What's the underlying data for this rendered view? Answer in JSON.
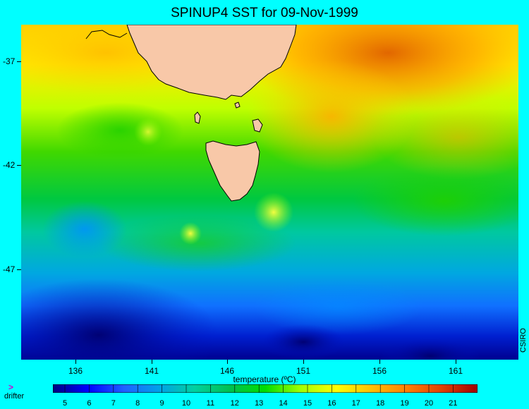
{
  "title": "SPINUP4 SST for 09-Nov-1999",
  "y_axis": {
    "ticks": [
      "-37",
      "-42",
      "-47"
    ]
  },
  "x_axis": {
    "ticks": [
      "136",
      "141",
      "146",
      "151",
      "156",
      "161"
    ]
  },
  "colorbar": {
    "title": "temperature (ºC)",
    "labels": [
      "5",
      "6",
      "7",
      "8",
      "9",
      "10",
      "11",
      "12",
      "13",
      "14",
      "15",
      "16",
      "17",
      "18",
      "19",
      "20",
      "21"
    ],
    "stops": [
      "#000080",
      "#0000ff",
      "#2060ff",
      "#00a0e8",
      "#00d0a0",
      "#00c050",
      "#00dd00",
      "#a0ff00",
      "#ffff00",
      "#ffc000",
      "#ff8000",
      "#e04000",
      "#a00000"
    ]
  },
  "legend": {
    "drifter_symbol": ">",
    "drifter_label": "drifter"
  },
  "credit": "CSIRO",
  "colors": {
    "land": "#f8c8a8",
    "background": "#00ffff"
  }
}
